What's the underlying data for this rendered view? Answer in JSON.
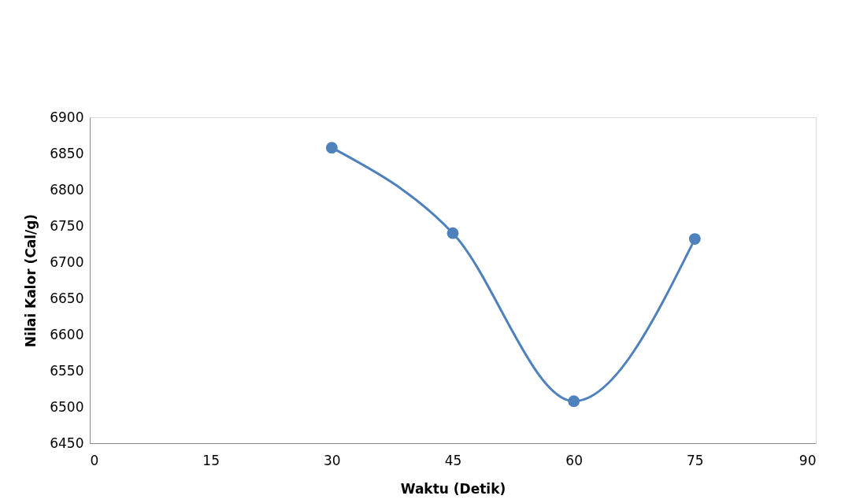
{
  "chart_data": {
    "type": "line",
    "xlabel": "Waktu (Detik)",
    "ylabel": "Nilai Kalor (Cal/g)",
    "x": [
      30,
      45,
      60,
      75
    ],
    "series": [
      {
        "color": "#4f81bd",
        "values": [
          6858,
          6740,
          6508,
          6732
        ]
      }
    ],
    "xlim": [
      0,
      90
    ],
    "xticks": [
      0,
      15,
      30,
      45,
      60,
      75,
      90
    ],
    "ylim": [
      6450,
      6900
    ],
    "yticks": [
      6450,
      6500,
      6550,
      6600,
      6650,
      6700,
      6750,
      6800,
      6850,
      6900
    ],
    "grid": false,
    "legend": false,
    "marker": "circle",
    "line_style": "solid"
  }
}
